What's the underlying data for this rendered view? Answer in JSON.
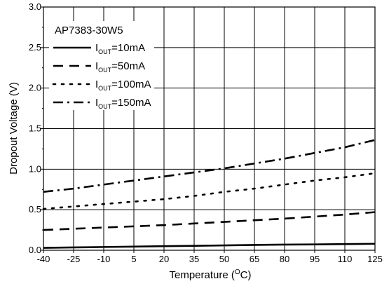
{
  "chart_data": {
    "type": "line",
    "title": "",
    "xlabel": {
      "main": "Temperature (",
      "superscript": "O",
      "tail": "C)"
    },
    "ylabel": "Dropout Voltage (V)",
    "xlim": [
      -40,
      125
    ],
    "ylim": [
      0,
      3.0
    ],
    "x_ticks": [
      -40,
      -25,
      -10,
      5,
      20,
      35,
      50,
      65,
      80,
      95,
      110,
      125
    ],
    "y_ticks": [
      0,
      0.5,
      1.0,
      1.5,
      2.0,
      2.5,
      3.0
    ],
    "y_tick_labels": [
      "0.0",
      "0.5",
      "1.0",
      "1.5",
      "2.0",
      "2.5",
      "3.0"
    ],
    "grid": true,
    "legend": {
      "title": "AP7383-30W5",
      "position": "top-left"
    },
    "series": [
      {
        "label_main": "I",
        "label_sub": "OUT",
        "label_tail": "=10mA",
        "dash": "solid",
        "x": [
          -40,
          -25,
          -10,
          5,
          20,
          35,
          50,
          65,
          80,
          95,
          110,
          125
        ],
        "y": [
          0.03,
          0.035,
          0.04,
          0.045,
          0.05,
          0.055,
          0.06,
          0.065,
          0.07,
          0.072,
          0.076,
          0.08
        ]
      },
      {
        "label_main": "I",
        "label_sub": "OUT",
        "label_tail": "=50mA",
        "dash": "dash",
        "x": [
          -40,
          -25,
          -10,
          5,
          20,
          35,
          50,
          65,
          80,
          95,
          110,
          125
        ],
        "y": [
          0.25,
          0.265,
          0.28,
          0.295,
          0.31,
          0.33,
          0.35,
          0.37,
          0.39,
          0.415,
          0.44,
          0.47
        ]
      },
      {
        "label_main": "I",
        "label_sub": "OUT",
        "label_tail": "=100mA",
        "dash": "dot",
        "x": [
          -40,
          -25,
          -10,
          5,
          20,
          35,
          50,
          65,
          80,
          95,
          110,
          125
        ],
        "y": [
          0.51,
          0.54,
          0.57,
          0.6,
          0.63,
          0.67,
          0.72,
          0.76,
          0.81,
          0.86,
          0.9,
          0.95
        ]
      },
      {
        "label_main": "I",
        "label_sub": "OUT",
        "label_tail": "=150mA",
        "dash": "dashdot",
        "x": [
          -40,
          -25,
          -10,
          5,
          20,
          35,
          50,
          65,
          80,
          95,
          110,
          125
        ],
        "y": [
          0.72,
          0.76,
          0.81,
          0.86,
          0.91,
          0.96,
          1.01,
          1.07,
          1.13,
          1.2,
          1.27,
          1.36
        ]
      }
    ]
  }
}
